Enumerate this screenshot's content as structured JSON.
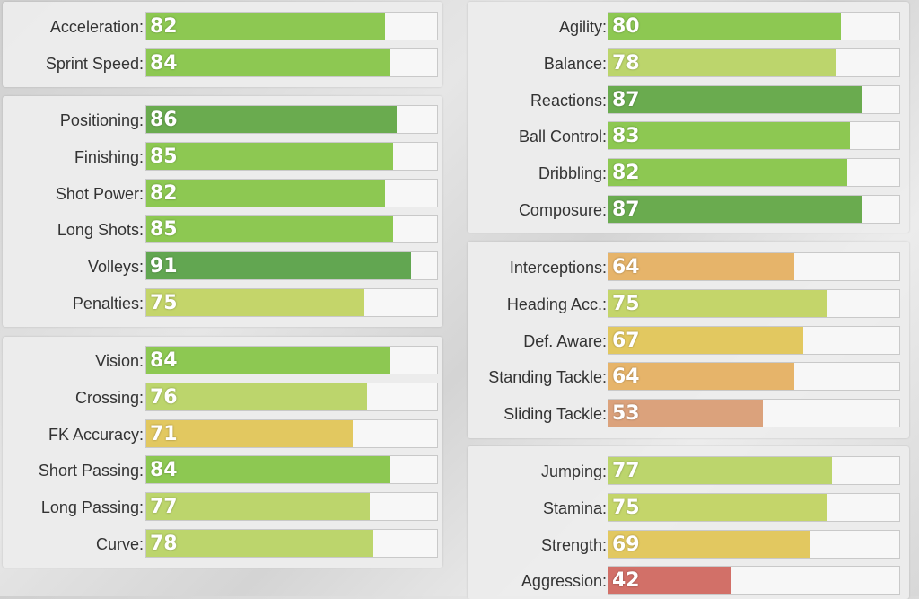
{
  "colors": {
    "c91": "#62a651",
    "c85": "#6aab4f",
    "c80": "#8dc852",
    "c76": "#bcd56c",
    "c75": "#c4d56a",
    "c69": "#e2c860",
    "c64": "#e6b46a",
    "c53": "#dba27c",
    "c42": "#d27068"
  },
  "panels": [
    {
      "name": "panel-pace",
      "stats": [
        {
          "label": "Acceleration",
          "value": "82",
          "fraction": 0.82,
          "color": "c80"
        },
        {
          "label": "Sprint Speed",
          "value": "84",
          "fraction": 0.84,
          "color": "c80"
        }
      ]
    },
    {
      "name": "panel-shooting",
      "stats": [
        {
          "label": "Positioning",
          "value": "86",
          "fraction": 0.86,
          "color": "c85"
        },
        {
          "label": "Finishing",
          "value": "85",
          "fraction": 0.85,
          "color": "c80"
        },
        {
          "label": "Shot Power",
          "value": "82",
          "fraction": 0.82,
          "color": "c80"
        },
        {
          "label": "Long Shots",
          "value": "85",
          "fraction": 0.85,
          "color": "c80"
        },
        {
          "label": "Volleys",
          "value": "91",
          "fraction": 0.91,
          "color": "c91"
        },
        {
          "label": "Penalties",
          "value": "75",
          "fraction": 0.75,
          "color": "c75"
        }
      ]
    },
    {
      "name": "panel-passing",
      "stats": [
        {
          "label": "Vision",
          "value": "84",
          "fraction": 0.84,
          "color": "c80"
        },
        {
          "label": "Crossing",
          "value": "76",
          "fraction": 0.76,
          "color": "c76"
        },
        {
          "label": "FK Accuracy",
          "value": "71",
          "fraction": 0.71,
          "color": "c69"
        },
        {
          "label": "Short Passing",
          "value": "84",
          "fraction": 0.84,
          "color": "c80"
        },
        {
          "label": "Long Passing",
          "value": "77",
          "fraction": 0.77,
          "color": "c76"
        },
        {
          "label": "Curve",
          "value": "78",
          "fraction": 0.78,
          "color": "c76"
        }
      ]
    },
    {
      "name": "panel-dribbling",
      "stats": [
        {
          "label": "Agility",
          "value": "80",
          "fraction": 0.8,
          "color": "c80"
        },
        {
          "label": "Balance",
          "value": "78",
          "fraction": 0.78,
          "color": "c76"
        },
        {
          "label": "Reactions",
          "value": "87",
          "fraction": 0.87,
          "color": "c85"
        },
        {
          "label": "Ball Control",
          "value": "83",
          "fraction": 0.83,
          "color": "c80"
        },
        {
          "label": "Dribbling",
          "value": "82",
          "fraction": 0.82,
          "color": "c80"
        },
        {
          "label": "Composure",
          "value": "87",
          "fraction": 0.87,
          "color": "c85"
        }
      ]
    },
    {
      "name": "panel-defending",
      "stats": [
        {
          "label": "Interceptions",
          "value": "64",
          "fraction": 0.64,
          "color": "c64"
        },
        {
          "label": "Heading Acc.",
          "value": "75",
          "fraction": 0.75,
          "color": "c75"
        },
        {
          "label": "Def. Aware",
          "value": "67",
          "fraction": 0.67,
          "color": "c69"
        },
        {
          "label": "Standing Tackle",
          "value": "64",
          "fraction": 0.64,
          "color": "c64"
        },
        {
          "label": "Sliding Tackle",
          "value": "53",
          "fraction": 0.53,
          "color": "c53"
        }
      ]
    },
    {
      "name": "panel-physical",
      "stats": [
        {
          "label": "Jumping",
          "value": "77",
          "fraction": 0.77,
          "color": "c76"
        },
        {
          "label": "Stamina",
          "value": "75",
          "fraction": 0.75,
          "color": "c75"
        },
        {
          "label": "Strength",
          "value": "69",
          "fraction": 0.69,
          "color": "c69"
        },
        {
          "label": "Aggression",
          "value": "42",
          "fraction": 0.42,
          "color": "c42"
        }
      ]
    }
  ]
}
